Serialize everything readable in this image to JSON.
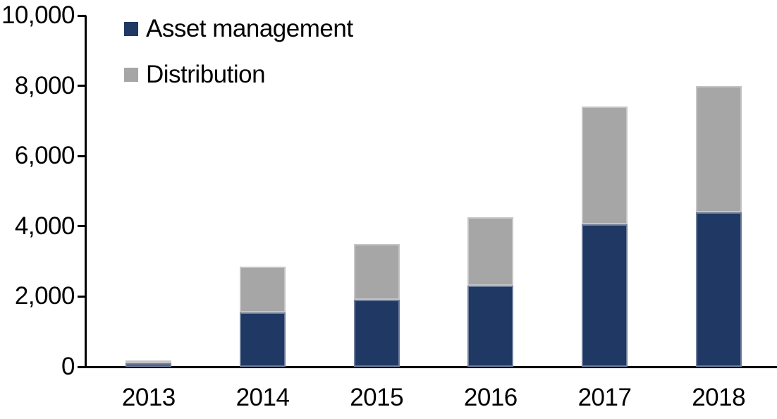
{
  "chart_data": {
    "type": "bar",
    "stacked": true,
    "title": "",
    "xlabel": "",
    "ylabel": "",
    "categories": [
      "2013",
      "2014",
      "2015",
      "2016",
      "2017",
      "2018"
    ],
    "series": [
      {
        "name": "Asset management",
        "color": "#1f3864",
        "values": [
          100,
          1550,
          1900,
          2300,
          4050,
          4400
        ]
      },
      {
        "name": "Distribution",
        "color": "#a6a6a6",
        "values": [
          90,
          1300,
          1600,
          1950,
          3350,
          3600
        ]
      }
    ],
    "stack_totals": [
      190,
      2850,
      3500,
      4250,
      7400,
      8000
    ],
    "ylim": [
      0,
      10000
    ],
    "yticks": [
      0,
      2000,
      4000,
      6000,
      8000,
      10000
    ],
    "ytick_labels": [
      "0",
      "2,000",
      "4,000",
      "6,000",
      "8,000",
      "10,000"
    ],
    "legend_position": "top-left",
    "grid": false,
    "axis_color": "#000000",
    "text_color": "#000000",
    "background_color": "#ffffff"
  }
}
